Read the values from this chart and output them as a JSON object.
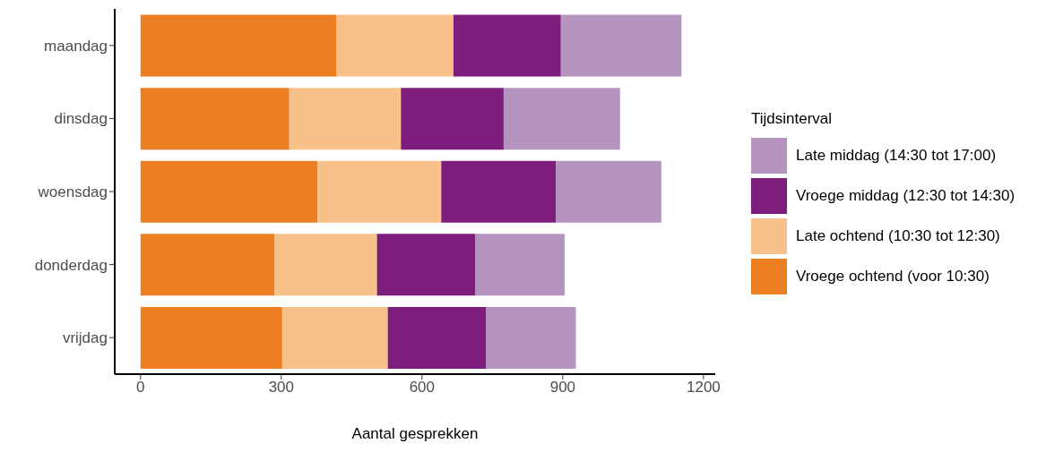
{
  "chart_data": {
    "type": "bar",
    "orientation": "horizontal",
    "stacked": true,
    "xlabel": "Aantal gesprekken",
    "legend_title": "Tijdsinterval",
    "legend": "right",
    "grid": false,
    "categories": [
      "maandag",
      "dinsdag",
      "woensdag",
      "donderdag",
      "vrijdag"
    ],
    "series": [
      {
        "name": "Vroege ochtend (voor 10:30)",
        "color": "#ec7f22",
        "values": [
          418,
          317,
          377,
          285,
          302
        ]
      },
      {
        "name": "Late ochtend (10:30 tot 12:30)",
        "color": "#f8c18a",
        "values": [
          249,
          238,
          264,
          219,
          225
        ]
      },
      {
        "name": "Vroege middag (12:30 tot 14:30)",
        "color": "#7d1e7c",
        "values": [
          229,
          219,
          244,
          210,
          210
        ]
      },
      {
        "name": "Late middag (14:30 tot 17:00)",
        "color": "#b594c0",
        "values": [
          257,
          248,
          225,
          190,
          191
        ]
      }
    ],
    "xlim": [
      -55,
      1225
    ],
    "xticks": [
      0,
      300,
      600,
      900,
      1200
    ]
  }
}
